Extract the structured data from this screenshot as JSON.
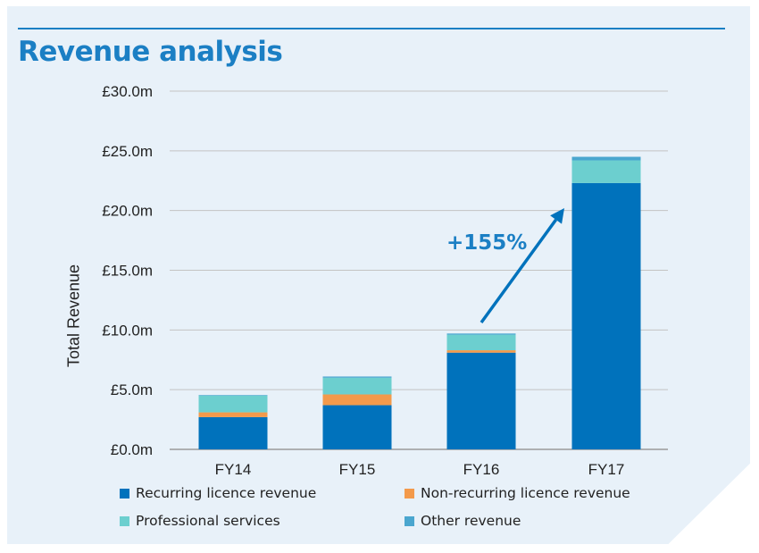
{
  "title": "Revenue analysis",
  "colors": {
    "accent": "#1b7fc4",
    "recurring": "#0072bc",
    "nonrecurring": "#f39a4b",
    "professional": "#6ccfcf",
    "other": "#4aa6cf",
    "background": "#e8f1f9"
  },
  "chart_data": {
    "type": "bar",
    "stacked": true,
    "categories": [
      "FY14",
      "FY15",
      "FY16",
      "FY17"
    ],
    "series": [
      {
        "name": "Recurring licence revenue",
        "values": [
          2.7,
          3.7,
          8.1,
          22.3
        ]
      },
      {
        "name": "Non-recurring licence revenue",
        "values": [
          0.4,
          0.9,
          0.2,
          0.0
        ]
      },
      {
        "name": "Professional services",
        "values": [
          1.4,
          1.4,
          1.3,
          1.9
        ]
      },
      {
        "name": "Other revenue",
        "values": [
          0.05,
          0.1,
          0.1,
          0.3
        ]
      }
    ],
    "ylabel": "Total Revenue",
    "ylim": [
      0,
      30
    ],
    "yticks": [
      0,
      5,
      10,
      15,
      20,
      25,
      30
    ],
    "ytick_labels": [
      "£0.0m",
      "£5.0m",
      "£10.0m",
      "£15.0m",
      "£20.0m",
      "£25.0m",
      "£30.0m"
    ],
    "grid": true,
    "legend_position": "bottom",
    "annotation": {
      "text": "+155%",
      "from": "FY16",
      "to": "FY17"
    }
  }
}
